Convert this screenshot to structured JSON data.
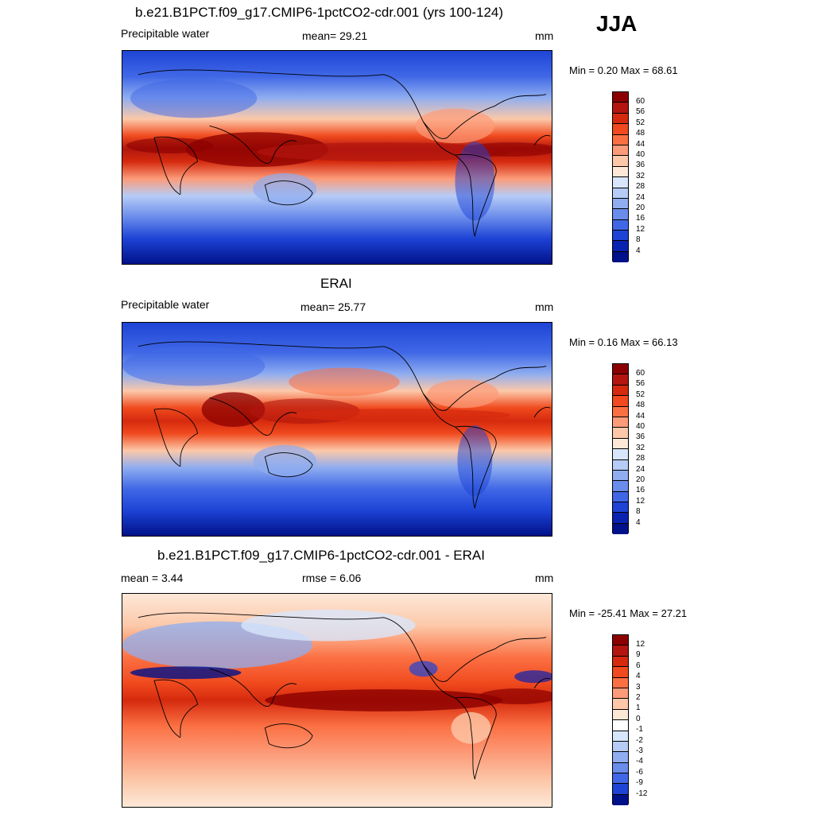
{
  "season": "JJA",
  "levels_abs": [
    "60",
    "56",
    "52",
    "48",
    "44",
    "40",
    "36",
    "32",
    "28",
    "24",
    "20",
    "16",
    "12",
    "8",
    "4"
  ],
  "colors_abs": [
    "#8b0000",
    "#b2160e",
    "#d52a0e",
    "#f04a1e",
    "#fb7043",
    "#fc9b79",
    "#fcc8a9",
    "#fde8d8",
    "#d8e6fb",
    "#b6ccf6",
    "#8fadf0",
    "#6a8ceb",
    "#4068e6",
    "#1e44d6",
    "#0a22b0",
    "#00118a"
  ],
  "levels_diff": [
    "12",
    "9",
    "6",
    "4",
    "3",
    "2",
    "1",
    "0",
    "-1",
    "-2",
    "-3",
    "-4",
    "-6",
    "-9",
    "-12"
  ],
  "colors_diff": [
    "#8b0000",
    "#b2160e",
    "#d52a0e",
    "#f04a1e",
    "#fb7043",
    "#fc9b79",
    "#fcc8a9",
    "#fde8d8",
    "#ffffff",
    "#d8e6fb",
    "#b6ccf6",
    "#8fadf0",
    "#6a8ceb",
    "#4068e6",
    "#1e44d6",
    "#00118a"
  ],
  "panels": [
    {
      "title": "b.e21.B1PCT.f09_g17.CMIP6-1pctCO2-cdr.001 (yrs 100-124)",
      "left_label": "Precipitable water",
      "center_label": "mean=  29.21",
      "units": "mm",
      "minmax": "Min =   0.20 Max =  68.61"
    },
    {
      "title": "ERAI",
      "left_label": "Precipitable water",
      "center_label": "mean=  25.77",
      "units": "mm",
      "minmax": "Min =   0.16 Max =  66.13"
    },
    {
      "title": "b.e21.B1PCT.f09_g17.CMIP6-1pctCO2-cdr.001 - ERAI",
      "left_label": "mean =   3.44",
      "center_label": "rmse =   6.06",
      "units": "mm",
      "minmax": "Min = -25.41 Max =  27.21"
    }
  ]
}
